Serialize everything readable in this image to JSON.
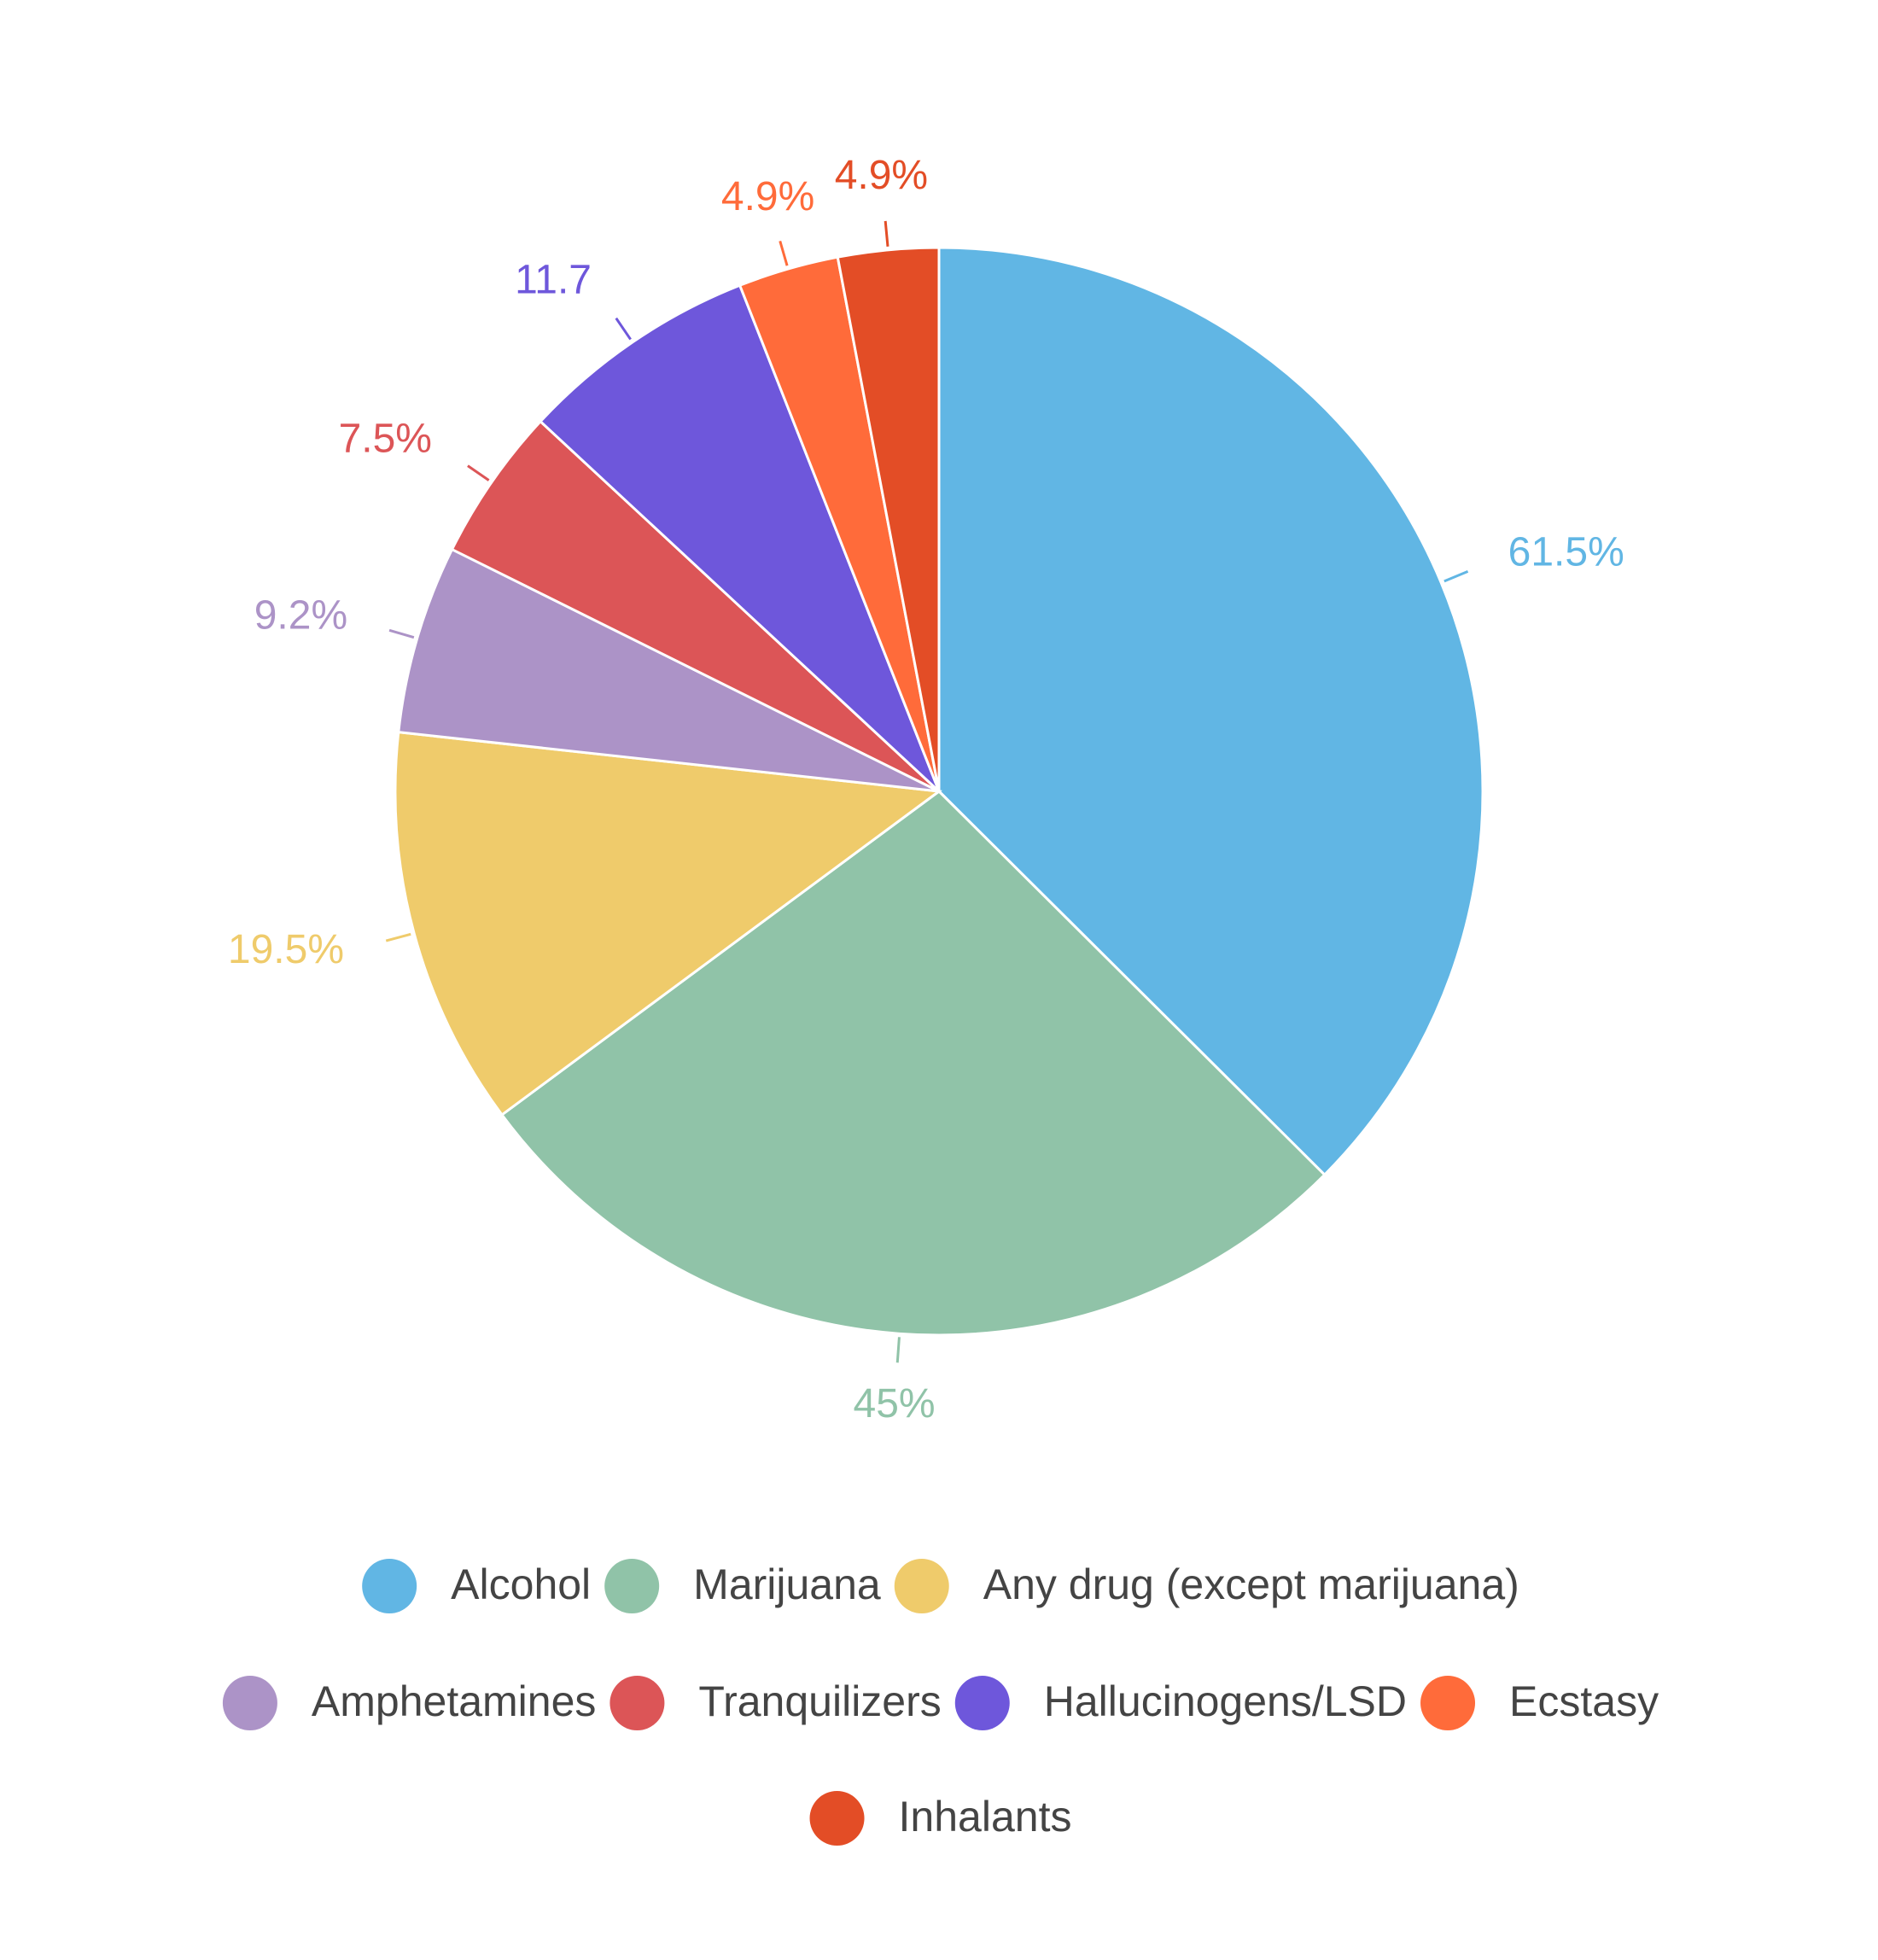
{
  "chart_data": {
    "type": "pie",
    "categories": [
      "Alcohol",
      "Marijuana",
      "Any drug (except marijuana)",
      "Amphetamines",
      "Tranquilizers",
      "Hallucinogens/LSD",
      "Ecstasy",
      "Inhalants"
    ],
    "values": [
      61.5,
      45,
      19.5,
      9.2,
      7.5,
      11.7,
      4.9,
      4.9
    ],
    "value_labels": [
      "61.5%",
      "45%",
      "19.5%",
      "9.2%",
      "7.5%",
      "11.7",
      "4.9%",
      "4.9%"
    ],
    "colors": [
      "#61b6e4",
      "#90c3a8",
      "#efcb6b",
      "#ac93c7",
      "#dc5557",
      "#6e57db",
      "#ff6b3a",
      "#e34d26"
    ],
    "legend": "bottom"
  }
}
